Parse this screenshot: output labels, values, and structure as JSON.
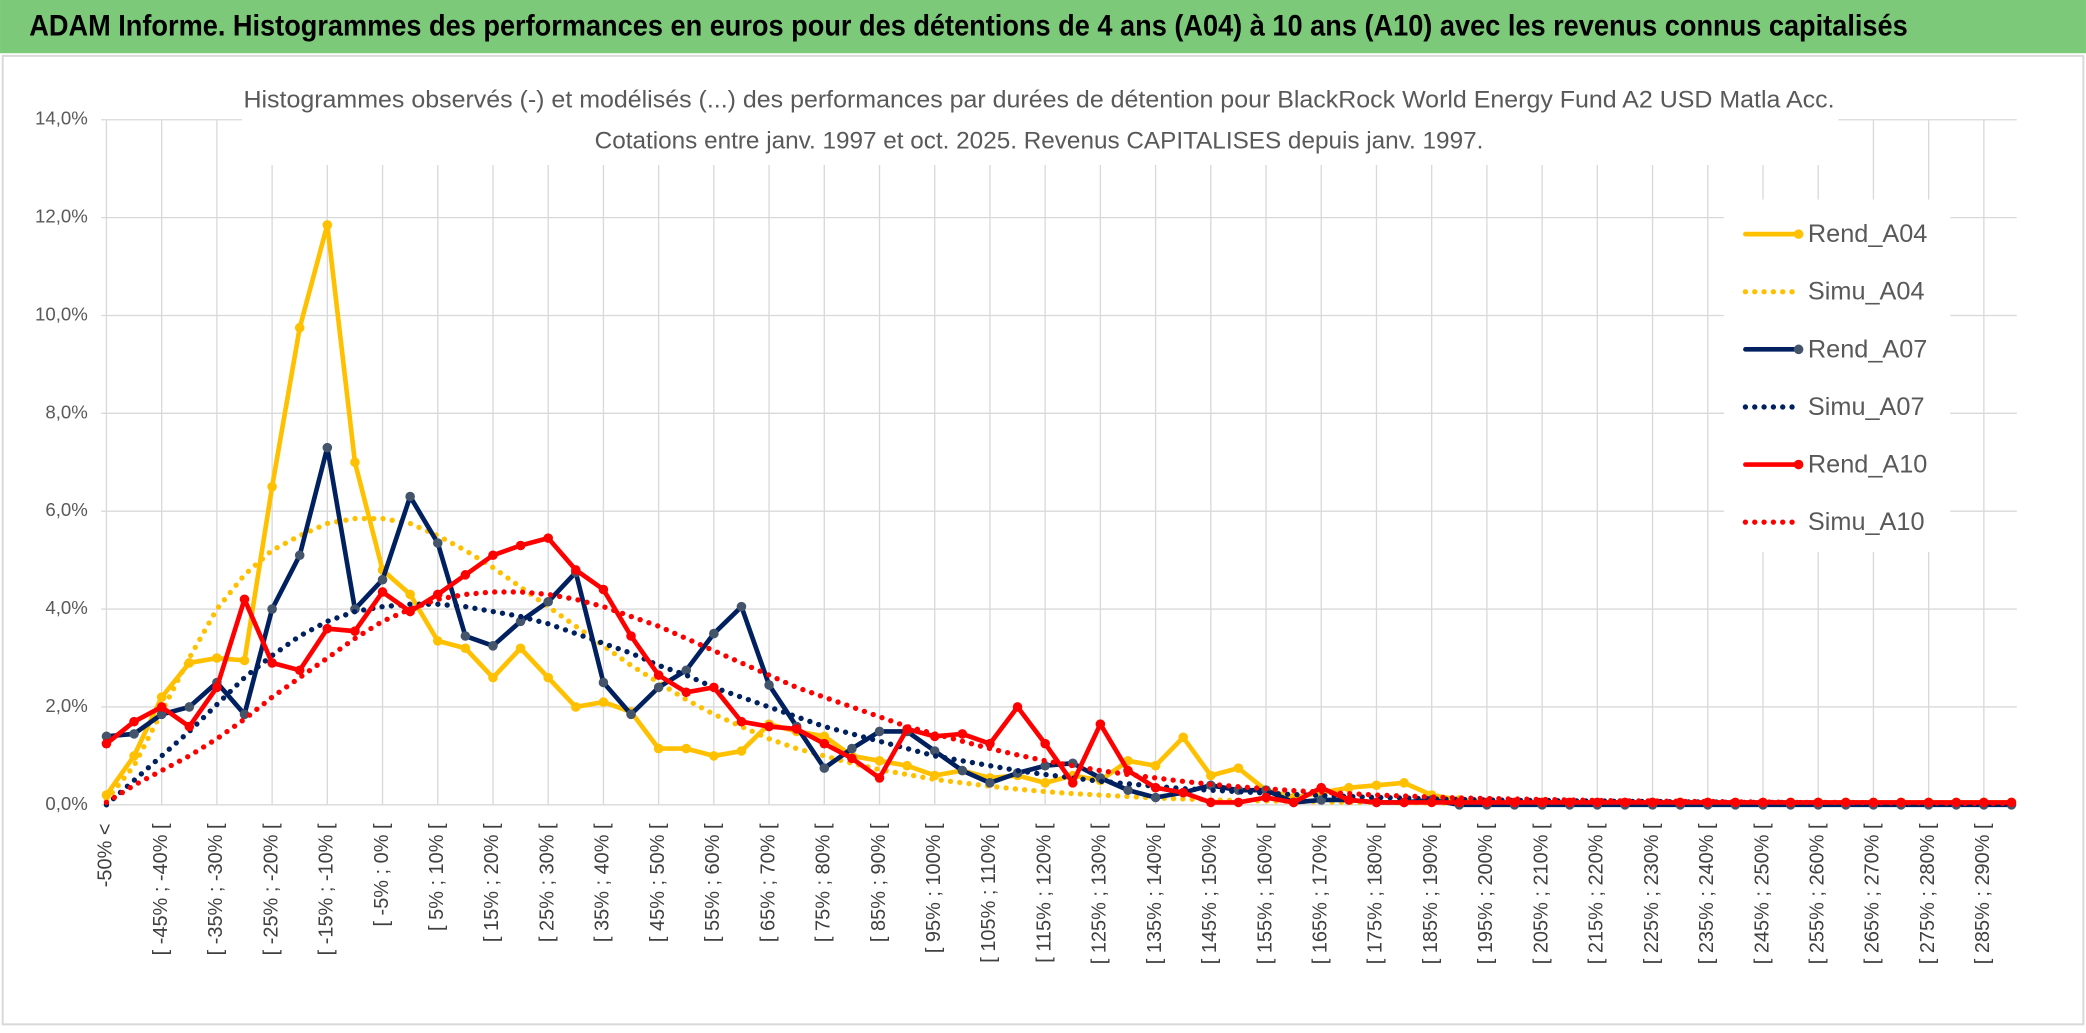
{
  "header": "ADAM Informe. Histogrammes des performances en euros pour des détentions de 4 ans (A04) à 10 ans (A10) avec les revenus connus capitalisés",
  "chart_data": {
    "type": "line",
    "title": "Histogrammes observés (-) et modélisés (...) des performances par durées de détention pour BlackRock World Energy Fund A2 USD Matla Acc.",
    "subtitle": "Cotations entre janv. 1997 et oct. 2025. Revenus CAPITALISES depuis janv. 1997.",
    "categories": [
      "-50% <",
      null,
      "[ -45% ; -40% [",
      null,
      "[ -35% ; -30% [",
      null,
      "[ -25% ; -20% [",
      null,
      "[ -15% ; -10% [",
      null,
      "[ -5% ; 0% [",
      null,
      "[ 5% ; 10% [",
      null,
      "[ 15% ; 20% [",
      null,
      "[ 25% ; 30% [",
      null,
      "[ 35% ; 40% [",
      null,
      "[ 45% ; 50% [",
      null,
      "[ 55% ; 60% [",
      null,
      "[ 65% ; 70% [",
      null,
      "[ 75% ; 80% [",
      null,
      "[ 85% ; 90% [",
      null,
      "[ 95% ; 100% [",
      null,
      "[ 105% ; 110% [",
      null,
      "[ 115% ; 120% [",
      null,
      "[ 125% ; 130% [",
      null,
      "[ 135% ; 140% [",
      null,
      "[ 145% ; 150% [",
      null,
      "[ 155% ; 160% [",
      null,
      "[ 165% ; 170% [",
      null,
      "[ 175% ; 180% [",
      null,
      "[ 185% ; 190% [",
      null,
      "[ 195% ; 200% [",
      null,
      "[ 205% ; 210% [",
      null,
      "[ 215% ; 220% [",
      null,
      "[ 225% ; 230% [",
      null,
      "[ 235% ; 240% [",
      null,
      "[ 245% ; 250% [",
      null,
      "[ 255% ; 260% [",
      null,
      "[ 265% ; 270% [",
      null,
      "[ 275% ; 280% [",
      null,
      "[ 285% ; 290% [",
      null
    ],
    "series": [
      {
        "name": "Rend_A04",
        "color": "#ffc000",
        "style": "solid",
        "marker_color": "#ffc000",
        "values": [
          0.2,
          1.0,
          2.2,
          2.9,
          3.0,
          2.95,
          6.5,
          9.75,
          11.85,
          7.0,
          4.8,
          4.3,
          3.35,
          3.2,
          2.6,
          3.2,
          2.6,
          2.0,
          2.1,
          1.9,
          1.15,
          1.15,
          1.0,
          1.1,
          1.65,
          1.5,
          1.4,
          1.0,
          0.9,
          0.8,
          0.6,
          0.7,
          0.55,
          0.6,
          0.45,
          0.6,
          0.5,
          0.9,
          0.8,
          1.38,
          0.6,
          0.75,
          0.3,
          0.15,
          0.25,
          0.35,
          0.4,
          0.45,
          0.2,
          0.1,
          0.05,
          0.05,
          0.05,
          0.05,
          0.05,
          0.05,
          0.05,
          0.05,
          0.05,
          0.05,
          0.05,
          0.05,
          0.05,
          0.05,
          0.05,
          0.05,
          0.05,
          0.05,
          0.05,
          0.05
        ]
      },
      {
        "name": "Simu_A04",
        "color": "#ffc000",
        "style": "dotted",
        "values": [
          0.1,
          0.8,
          1.9,
          3.0,
          4.0,
          4.7,
          5.2,
          5.5,
          5.75,
          5.85,
          5.85,
          5.75,
          5.5,
          5.2,
          4.85,
          4.45,
          4.05,
          3.65,
          3.25,
          2.85,
          2.5,
          2.15,
          1.85,
          1.6,
          1.35,
          1.15,
          1.0,
          0.85,
          0.72,
          0.62,
          0.52,
          0.45,
          0.38,
          0.32,
          0.27,
          0.23,
          0.2,
          0.17,
          0.14,
          0.12,
          0.1,
          0.09,
          0.08,
          0.07,
          0.06,
          0.05,
          0.05,
          0.04,
          0.04,
          0.03,
          0.03,
          0.03,
          0.02,
          0.02,
          0.02,
          0.02,
          0.02,
          0.01,
          0.01,
          0.01,
          0.01,
          0.01,
          0.01,
          0.01,
          0.01,
          0.01,
          0.01,
          0.01,
          0.01,
          0.01
        ]
      },
      {
        "name": "Rend_A07",
        "color": "#002060",
        "style": "solid",
        "marker_color": "#44546a",
        "values": [
          1.4,
          1.45,
          1.85,
          2.0,
          2.5,
          1.85,
          4.0,
          5.1,
          7.3,
          4.0,
          4.6,
          6.3,
          5.35,
          3.45,
          3.25,
          3.75,
          4.15,
          4.75,
          2.5,
          1.85,
          2.4,
          2.75,
          3.5,
          4.05,
          2.45,
          1.6,
          0.75,
          1.15,
          1.5,
          1.5,
          1.1,
          0.7,
          0.45,
          0.65,
          0.8,
          0.85,
          0.55,
          0.3,
          0.15,
          0.25,
          0.4,
          0.3,
          0.3,
          0.05,
          0.1,
          0.1,
          0.05,
          0.05,
          0.1,
          0.0,
          0.0,
          0.0,
          0.0,
          0.0,
          0.0,
          0.0,
          0.0,
          0.0,
          0.0,
          0.0,
          0.0,
          0.0,
          0.0,
          0.0,
          0.0,
          0.0,
          0.0,
          0.0,
          0.0,
          0.0
        ]
      },
      {
        "name": "Simu_A07",
        "color": "#002060",
        "style": "dotted",
        "values": [
          0.0,
          0.5,
          1.0,
          1.5,
          2.05,
          2.6,
          3.05,
          3.45,
          3.75,
          3.95,
          4.05,
          4.1,
          4.1,
          4.05,
          3.95,
          3.85,
          3.7,
          3.5,
          3.3,
          3.1,
          2.85,
          2.65,
          2.4,
          2.2,
          2.0,
          1.8,
          1.6,
          1.45,
          1.3,
          1.15,
          1.0,
          0.9,
          0.8,
          0.7,
          0.62,
          0.55,
          0.48,
          0.43,
          0.38,
          0.33,
          0.3,
          0.27,
          0.24,
          0.21,
          0.19,
          0.17,
          0.15,
          0.14,
          0.12,
          0.11,
          0.1,
          0.09,
          0.09,
          0.08,
          0.08,
          0.07,
          0.07,
          0.06,
          0.06,
          0.05,
          0.05,
          0.05,
          0.04,
          0.04,
          0.04,
          0.03,
          0.03,
          0.03,
          0.03,
          0.02
        ]
      },
      {
        "name": "Rend_A10",
        "color": "#ff0000",
        "style": "solid",
        "marker_color": "#ff0000",
        "values": [
          1.25,
          1.7,
          2.0,
          1.6,
          2.4,
          4.2,
          2.9,
          2.75,
          3.6,
          3.55,
          4.35,
          3.95,
          4.3,
          4.7,
          5.1,
          5.3,
          5.45,
          4.8,
          4.4,
          3.45,
          2.65,
          2.3,
          2.4,
          1.7,
          1.6,
          1.55,
          1.25,
          0.95,
          0.55,
          1.55,
          1.4,
          1.45,
          1.25,
          2.0,
          1.25,
          0.45,
          1.65,
          0.7,
          0.35,
          0.25,
          0.05,
          0.05,
          0.15,
          0.05,
          0.35,
          0.1,
          0.05,
          0.05,
          0.05,
          0.05,
          0.05,
          0.05,
          0.05,
          0.05,
          0.05,
          0.05,
          0.05,
          0.05,
          0.05,
          0.05,
          0.05,
          0.05,
          0.05,
          0.05,
          0.05,
          0.05,
          0.05,
          0.05,
          0.05,
          0.05
        ]
      },
      {
        "name": "Simu_A10",
        "color": "#ff0000",
        "style": "dotted",
        "values": [
          0.05,
          0.4,
          0.7,
          1.0,
          1.35,
          1.75,
          2.2,
          2.6,
          3.0,
          3.4,
          3.75,
          4.0,
          4.2,
          4.3,
          4.35,
          4.35,
          4.3,
          4.2,
          4.05,
          3.85,
          3.65,
          3.4,
          3.15,
          2.9,
          2.65,
          2.4,
          2.2,
          2.0,
          1.8,
          1.6,
          1.45,
          1.3,
          1.15,
          1.02,
          0.9,
          0.8,
          0.7,
          0.62,
          0.55,
          0.48,
          0.42,
          0.37,
          0.33,
          0.29,
          0.26,
          0.23,
          0.2,
          0.18,
          0.16,
          0.14,
          0.13,
          0.12,
          0.11,
          0.1,
          0.09,
          0.08,
          0.08,
          0.07,
          0.07,
          0.06,
          0.06,
          0.05,
          0.05,
          0.05,
          0.04,
          0.04,
          0.04,
          0.03,
          0.03,
          0.03
        ]
      }
    ],
    "ylim": [
      0,
      14
    ],
    "yticks": [
      {
        "value": 0,
        "label": "0,0%"
      },
      {
        "value": 2,
        "label": "2,0%"
      },
      {
        "value": 4,
        "label": "4,0%"
      },
      {
        "value": 6,
        "label": "6,0%"
      },
      {
        "value": 8,
        "label": "8,0%"
      },
      {
        "value": 10,
        "label": "10,0%"
      },
      {
        "value": 12,
        "label": "12,0%"
      },
      {
        "value": 14,
        "label": "14,0%"
      }
    ],
    "grid": true,
    "legend": "right"
  }
}
